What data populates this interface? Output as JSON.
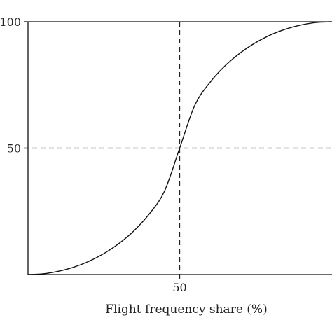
{
  "chart_data": {
    "type": "line",
    "title": "",
    "xlabel": "Flight frequency share (%)",
    "ylabel": "",
    "xlim": [
      0,
      100
    ],
    "ylim": [
      0,
      100
    ],
    "xticks": [
      "50"
    ],
    "yticks": [
      "50",
      "100"
    ],
    "grid": false,
    "reference_lines": [
      {
        "axis": "x",
        "value": 50,
        "style": "dashed"
      },
      {
        "axis": "y",
        "value": 50,
        "style": "dashed"
      }
    ],
    "series": [
      {
        "x": [
          0,
          5,
          10,
          15,
          20,
          25,
          30,
          35,
          40,
          45,
          50,
          55,
          60,
          65,
          70,
          75,
          80,
          85,
          90,
          95,
          100
        ],
        "values": [
          0.0,
          0.3,
          1.3,
          2.9,
          5.2,
          8.3,
          12.3,
          17.4,
          24.0,
          33.0,
          50.0,
          67.0,
          76.0,
          82.6,
          87.7,
          91.7,
          94.8,
          97.1,
          98.7,
          99.7,
          100.0
        ]
      }
    ],
    "colors": {
      "line": "#111111",
      "axis": "#111111",
      "reference": "#222222"
    }
  }
}
